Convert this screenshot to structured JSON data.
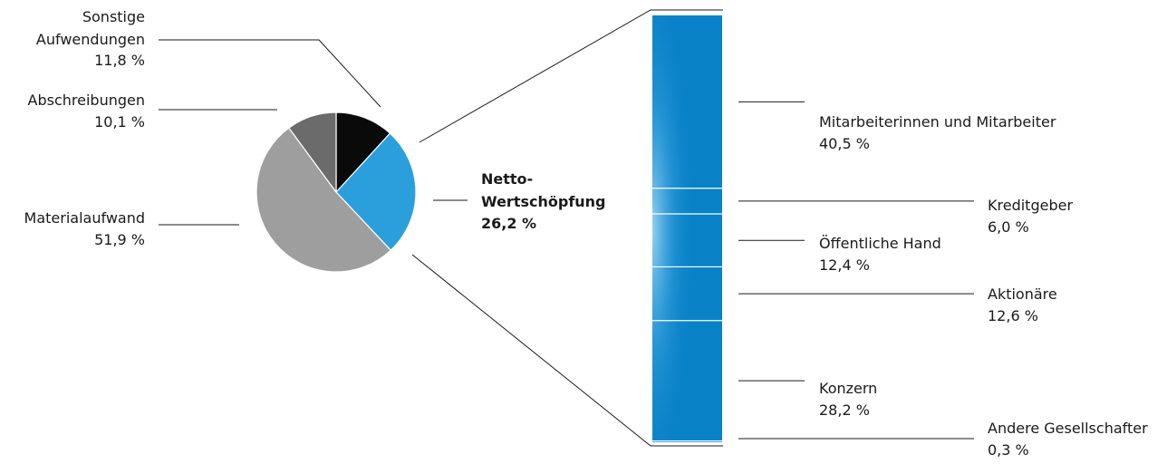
{
  "chart_data": [
    {
      "type": "pie",
      "slices": [
        {
          "label": "Sonstige Aufwendungen",
          "value": 11.8,
          "display": "11,8 %",
          "color": "#0a0a0a"
        },
        {
          "label": "Netto-Wertschöpfung",
          "value": 26.2,
          "display": "26,2 %",
          "color": "#2b9fdc"
        },
        {
          "label": "Materialaufwand",
          "value": 51.9,
          "display": "51,9 %",
          "color": "#9e9e9e"
        },
        {
          "label": "Abschreibungen",
          "value": 10.1,
          "display": "10,1 %",
          "color": "#6b6b6b"
        }
      ],
      "label_lines": {
        "Sonstige Aufwendungen": [
          "Sonstige",
          "Aufwendungen",
          "11,8 %"
        ],
        "Abschreibungen": [
          "Abschreibungen",
          "10,1 %"
        ],
        "Materialaufwand": [
          "Materialaufwand",
          "51,9 %"
        ],
        "Netto-Wertschöpfung": [
          "Netto-",
          "Wertschöpfung",
          "26,2 %"
        ]
      }
    },
    {
      "type": "bar",
      "stacked": true,
      "orientation": "vertical",
      "segments": [
        {
          "label": "Mitarbeiterinnen und Mitarbeiter",
          "value": 40.5,
          "display": "40,5 %"
        },
        {
          "label": "Kreditgeber",
          "value": 6.0,
          "display": "6,0 %"
        },
        {
          "label": "Öffentliche Hand",
          "value": 12.4,
          "display": "12,4 %"
        },
        {
          "label": "Aktionäre",
          "value": 12.6,
          "display": "12,6 %"
        },
        {
          "label": "Konzern",
          "value": 28.2,
          "display": "28,2 %"
        },
        {
          "label": "Andere Gesellschafter",
          "value": 0.3,
          "display": "0,3 %"
        }
      ],
      "colors": {
        "bar": "#0a82c8",
        "bar_edge": "#7ec8ee"
      }
    }
  ]
}
